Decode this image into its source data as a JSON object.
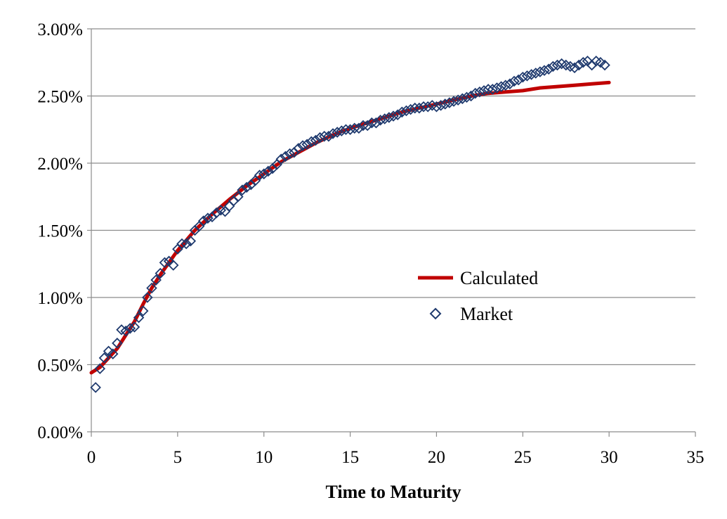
{
  "chart_data": {
    "type": "line",
    "title": "",
    "xlabel": "Time to Maturity",
    "ylabel": "",
    "xlim": [
      0,
      35
    ],
    "ylim": [
      0,
      0.03
    ],
    "x_ticks": [
      "0",
      "5",
      "10",
      "15",
      "20",
      "25",
      "30",
      "35"
    ],
    "y_ticks": [
      "0.00%",
      "0.50%",
      "1.00%",
      "1.50%",
      "2.00%",
      "2.50%",
      "3.00%"
    ],
    "grid": "horizontal",
    "legend_position": "center-right",
    "series": [
      {
        "name": "Calculated",
        "style": "line",
        "color": "#c00000",
        "x": [
          0,
          0.5,
          1,
          1.5,
          2,
          2.5,
          3,
          3.5,
          4,
          4.5,
          5,
          6,
          7,
          8,
          9,
          10,
          11,
          12,
          13,
          14,
          15,
          16,
          17,
          18,
          19,
          20,
          21,
          22,
          23,
          24,
          25,
          26,
          27,
          28,
          29,
          30
        ],
        "y": [
          0.0044,
          0.0048,
          0.0055,
          0.0062,
          0.0072,
          0.0082,
          0.0095,
          0.0107,
          0.0117,
          0.0126,
          0.0135,
          0.015,
          0.0162,
          0.0173,
          0.0183,
          0.0192,
          0.0201,
          0.0208,
          0.0215,
          0.0221,
          0.0226,
          0.023,
          0.0234,
          0.0238,
          0.0241,
          0.0244,
          0.0247,
          0.025,
          0.0252,
          0.0253,
          0.0254,
          0.0256,
          0.0257,
          0.0258,
          0.0259,
          0.026
        ]
      },
      {
        "name": "Market",
        "style": "marker",
        "marker": "diamond",
        "color": "#1f3a6e",
        "x": [
          0.25,
          0.5,
          0.75,
          1,
          1.25,
          1.5,
          1.75,
          2,
          2.25,
          2.5,
          2.75,
          3,
          3.25,
          3.5,
          3.75,
          4,
          4.25,
          4.5,
          4.75,
          5,
          5.25,
          5.5,
          5.75,
          6,
          6.25,
          6.5,
          6.75,
          7,
          7.25,
          7.5,
          7.75,
          8,
          8.25,
          8.5,
          8.75,
          9,
          9.25,
          9.5,
          9.75,
          10,
          10.25,
          10.5,
          10.75,
          11,
          11.25,
          11.5,
          11.75,
          12,
          12.25,
          12.5,
          12.75,
          13,
          13.25,
          13.5,
          13.75,
          14,
          14.25,
          14.5,
          14.75,
          15,
          15.25,
          15.5,
          15.75,
          16,
          16.25,
          16.5,
          16.75,
          17,
          17.25,
          17.5,
          17.75,
          18,
          18.25,
          18.5,
          18.75,
          19,
          19.25,
          19.5,
          19.75,
          20,
          20.25,
          20.5,
          20.75,
          21,
          21.25,
          21.5,
          21.75,
          22,
          22.25,
          22.5,
          22.75,
          23,
          23.25,
          23.5,
          23.75,
          24,
          24.25,
          24.5,
          24.75,
          25,
          25.25,
          25.5,
          25.75,
          26,
          26.25,
          26.5,
          26.75,
          27,
          27.25,
          27.5,
          27.75,
          28,
          28.25,
          28.5,
          28.75,
          29,
          29.25,
          29.5,
          29.75
        ],
        "y": [
          0.0033,
          0.0047,
          0.0055,
          0.006,
          0.0058,
          0.0066,
          0.0076,
          0.0075,
          0.0077,
          0.0078,
          0.0085,
          0.009,
          0.01,
          0.0107,
          0.0113,
          0.0118,
          0.0126,
          0.0127,
          0.0124,
          0.0136,
          0.014,
          0.014,
          0.0142,
          0.015,
          0.0153,
          0.0157,
          0.0159,
          0.016,
          0.0163,
          0.0165,
          0.0164,
          0.0168,
          0.0172,
          0.0175,
          0.018,
          0.0182,
          0.0184,
          0.0187,
          0.0191,
          0.0192,
          0.0194,
          0.0196,
          0.0199,
          0.0203,
          0.0205,
          0.0207,
          0.0208,
          0.0211,
          0.0213,
          0.0214,
          0.0216,
          0.0217,
          0.0219,
          0.022,
          0.022,
          0.0222,
          0.0223,
          0.0224,
          0.0225,
          0.0225,
          0.0226,
          0.0226,
          0.0228,
          0.0228,
          0.023,
          0.023,
          0.0232,
          0.0233,
          0.0234,
          0.0235,
          0.0236,
          0.0238,
          0.0239,
          0.024,
          0.0241,
          0.0241,
          0.0242,
          0.0242,
          0.0243,
          0.0242,
          0.0243,
          0.0244,
          0.0245,
          0.0246,
          0.0247,
          0.0248,
          0.0249,
          0.025,
          0.0252,
          0.0253,
          0.0254,
          0.0255,
          0.0255,
          0.0256,
          0.0257,
          0.0258,
          0.0259,
          0.0261,
          0.0262,
          0.0264,
          0.0265,
          0.0266,
          0.0267,
          0.0268,
          0.0269,
          0.027,
          0.0272,
          0.0273,
          0.0274,
          0.0273,
          0.0272,
          0.0271,
          0.0273,
          0.0275,
          0.0276,
          0.0273,
          0.0276,
          0.0275,
          0.0273
        ]
      }
    ]
  }
}
